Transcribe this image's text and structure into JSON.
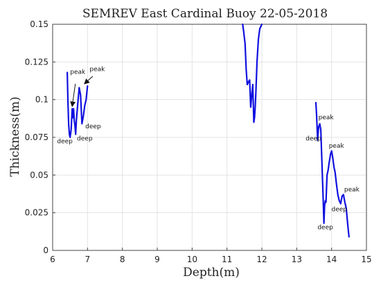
{
  "chart_data": {
    "type": "line",
    "title": "SEMREV East Cardinal Buoy 22-05-2018",
    "xlabel": "Depth(m)",
    "ylabel": "Thickness(m)",
    "xlim": [
      6,
      15
    ],
    "ylim": [
      0,
      0.15
    ],
    "xticks": [
      "6",
      "7",
      "8",
      "9",
      "10",
      "11",
      "12",
      "13",
      "14",
      "15"
    ],
    "yticks": [
      "0",
      "0.025",
      "0.05",
      "0.075",
      "0.1",
      "0.125",
      "0.15"
    ],
    "grid": true,
    "line_color": "#1010e0",
    "segments": [
      {
        "x": [
          6.42,
          6.44,
          6.46,
          6.48,
          6.5,
          6.53,
          6.56,
          6.58,
          6.6,
          6.62,
          6.64,
          6.66,
          6.68,
          6.72,
          6.76,
          6.8,
          6.84,
          6.88,
          6.92,
          6.96,
          7.0
        ],
        "y": [
          0.118,
          0.098,
          0.083,
          0.077,
          0.075,
          0.08,
          0.094,
          0.088,
          0.094,
          0.086,
          0.083,
          0.077,
          0.086,
          0.097,
          0.108,
          0.103,
          0.084,
          0.089,
          0.096,
          0.1,
          0.109
        ]
      },
      {
        "x": [
          11.45,
          11.48,
          11.52,
          11.55,
          11.58,
          11.62,
          11.65,
          11.68,
          11.71,
          11.74,
          11.77,
          11.79,
          11.81,
          11.83,
          11.86,
          11.9,
          11.94,
          11.98,
          12.0
        ],
        "y": [
          0.15,
          0.145,
          0.137,
          0.12,
          0.11,
          0.112,
          0.113,
          0.095,
          0.103,
          0.11,
          0.085,
          0.088,
          0.095,
          0.105,
          0.125,
          0.14,
          0.147,
          0.149,
          0.15
        ]
      },
      {
        "x": [
          13.55,
          13.57,
          13.6,
          13.63,
          13.66,
          13.69,
          13.72,
          13.75,
          13.78,
          13.8,
          13.82,
          13.84,
          13.87,
          13.9,
          13.93,
          13.97,
          14.0,
          14.03,
          14.07,
          14.1,
          14.14,
          14.18,
          14.22,
          14.26,
          14.3,
          14.34,
          14.38,
          14.42,
          14.46,
          14.5
        ],
        "y": [
          0.098,
          0.09,
          0.073,
          0.082,
          0.084,
          0.08,
          0.06,
          0.04,
          0.018,
          0.03,
          0.033,
          0.032,
          0.05,
          0.053,
          0.058,
          0.064,
          0.066,
          0.062,
          0.055,
          0.052,
          0.044,
          0.037,
          0.033,
          0.031,
          0.036,
          0.037,
          0.032,
          0.028,
          0.018,
          0.009
        ]
      }
    ],
    "annotations": [
      {
        "text": "peak",
        "x": 6.72,
        "y": 0.117
      },
      {
        "text": "peak",
        "x": 7.28,
        "y": 0.119
      },
      {
        "text": "deep",
        "x": 6.35,
        "y": 0.071
      },
      {
        "text": "deep",
        "x": 6.92,
        "y": 0.073
      },
      {
        "text": "deep",
        "x": 7.16,
        "y": 0.081
      },
      {
        "text": "peak",
        "x": 13.84,
        "y": 0.087
      },
      {
        "text": "deep",
        "x": 13.48,
        "y": 0.073
      },
      {
        "text": "peak",
        "x": 14.14,
        "y": 0.068
      },
      {
        "text": "peak",
        "x": 14.58,
        "y": 0.039
      },
      {
        "text": "deep",
        "x": 14.22,
        "y": 0.026
      },
      {
        "text": "deep",
        "x": 13.82,
        "y": 0.014
      }
    ],
    "arrows": [
      {
        "from_x": 6.65,
        "from_y": 0.1105,
        "to_x": 6.56,
        "to_y": 0.0955
      },
      {
        "from_x": 7.15,
        "from_y": 0.1155,
        "to_x": 6.91,
        "to_y": 0.1105
      }
    ]
  }
}
